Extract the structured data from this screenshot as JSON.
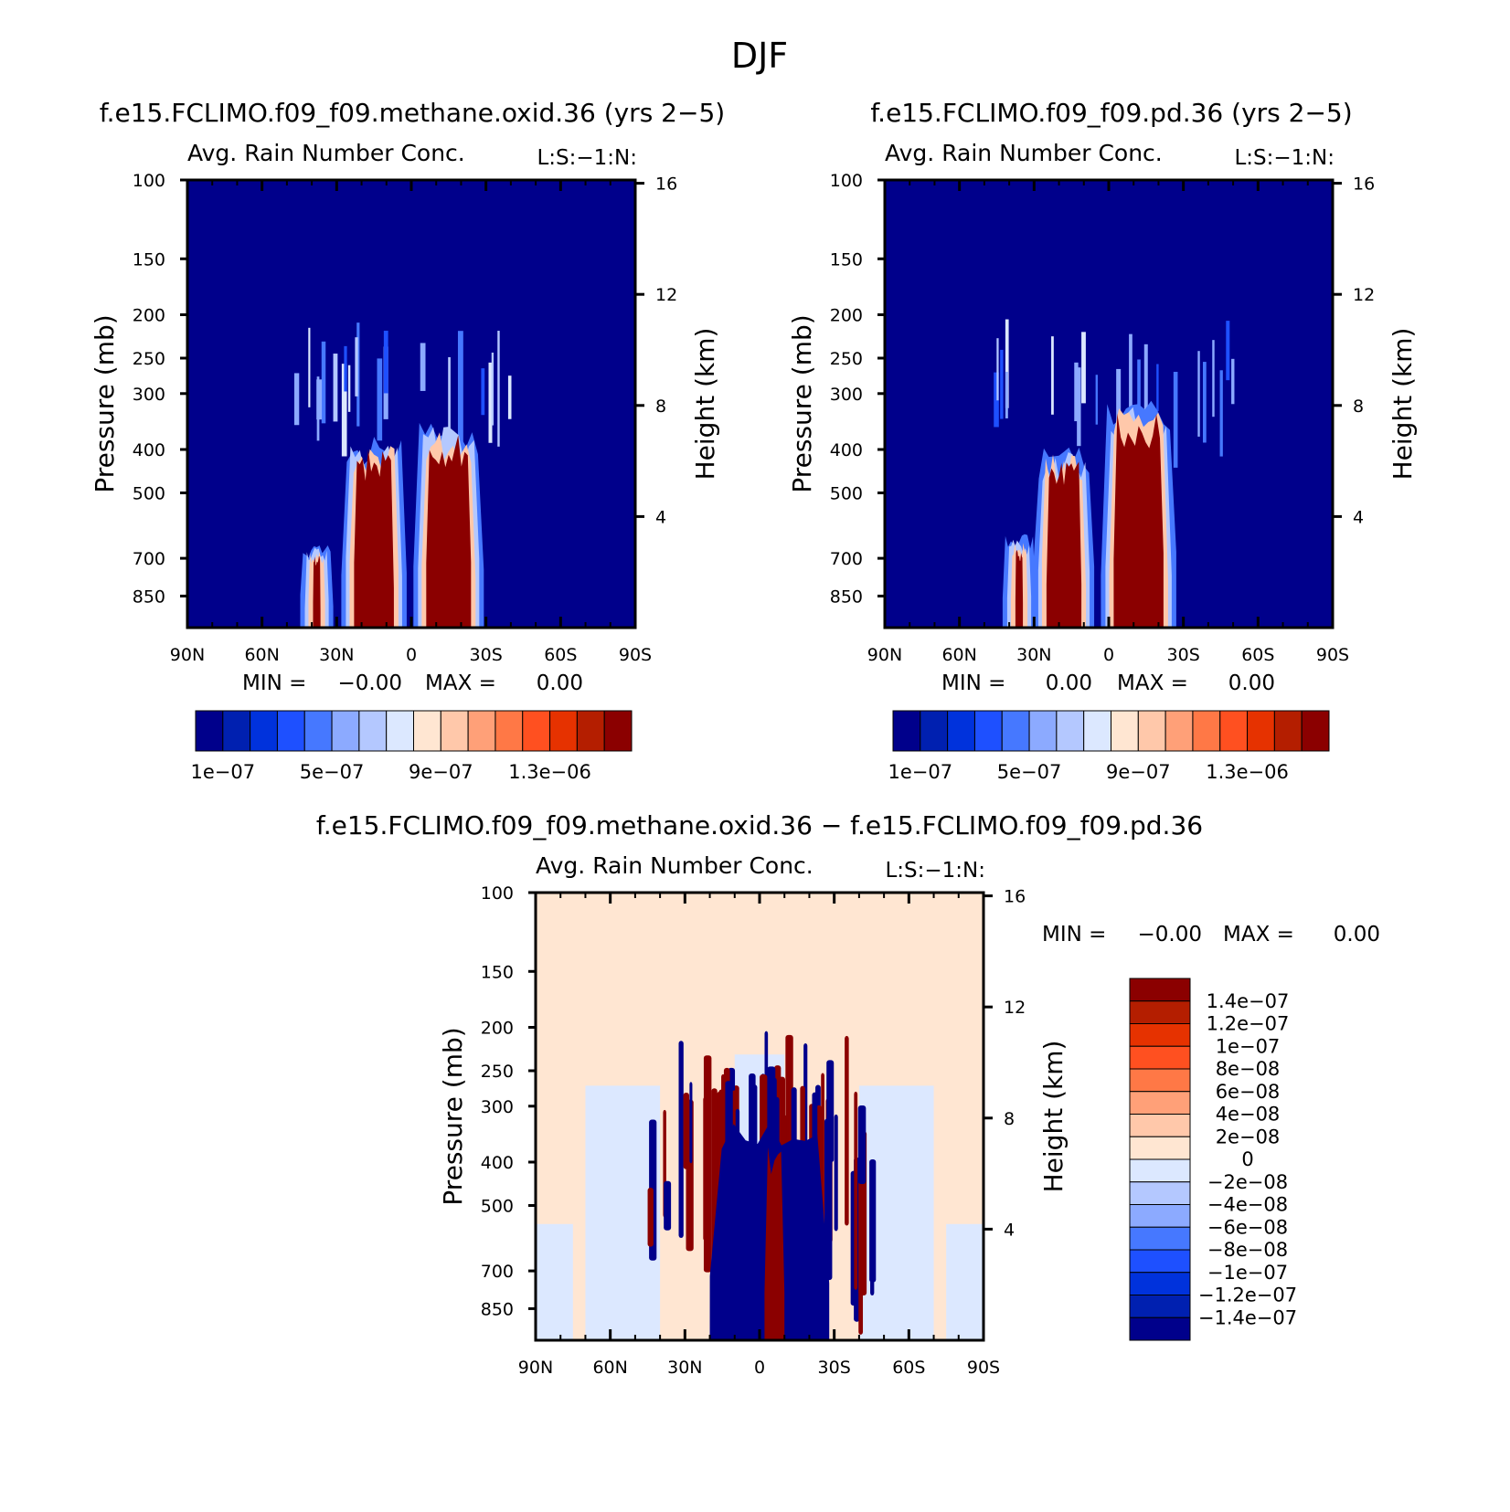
{
  "figure": {
    "season": "DJF"
  },
  "chart_data": [
    {
      "type": "heatmap",
      "title": "f.e15.FCLIMO.f09_f09.methane.oxid.36 (yrs 2−5)",
      "subtitle": "Avg. Rain Number Conc.",
      "tag": "L:S:−1:N:",
      "xlabel": "",
      "ylabel": "Pressure (mb)",
      "y2label": "Height (km)",
      "xticks": [
        "90N",
        "60N",
        "30N",
        "0",
        "30S",
        "60S",
        "90S"
      ],
      "yticks": [
        "100",
        "150",
        "200",
        "250",
        "300",
        "400",
        "500",
        "700",
        "850"
      ],
      "ylim": [
        100,
        1000
      ],
      "y2ticks": [
        "16",
        "12",
        "8",
        "4"
      ],
      "min_label": "MIN =",
      "min_value": "−0.00",
      "max_label": "MAX =",
      "max_value": "0.00",
      "colorbar": {
        "orientation": "horizontal",
        "colors": [
          "#00008b",
          "#0020b0",
          "#0032dc",
          "#1e50ff",
          "#4678ff",
          "#8caaff",
          "#b4c8ff",
          "#dce8ff",
          "#ffe6d2",
          "#ffc8aa",
          "#ffa078",
          "#ff7846",
          "#ff5020",
          "#e63200",
          "#b41e00",
          "#8b0000"
        ],
        "labels": [
          "1e−07",
          "5e−07",
          "9e−07",
          "1.3e−06"
        ]
      },
      "features": [
        {
          "lat": -15,
          "p_top": 370,
          "p_bottom": 1000,
          "width": 18,
          "value": "1.5e-06"
        },
        {
          "lat": 15,
          "p_top": 400,
          "p_bottom": 1000,
          "width": 16,
          "value": "1.5e-06"
        },
        {
          "lat": 38,
          "p_top": 690,
          "p_bottom": 1000,
          "width": 3,
          "value": "1.5e-06"
        }
      ]
    },
    {
      "type": "heatmap",
      "title": "f.e15.FCLIMO.f09_f09.pd.36 (yrs 2−5)",
      "subtitle": "Avg. Rain Number Conc.",
      "tag": "L:S:−1:N:",
      "xlabel": "",
      "ylabel": "Pressure (mb)",
      "y2label": "Height (km)",
      "xticks": [
        "90N",
        "60N",
        "30N",
        "0",
        "30S",
        "60S",
        "90S"
      ],
      "yticks": [
        "100",
        "150",
        "200",
        "250",
        "300",
        "400",
        "500",
        "700",
        "850"
      ],
      "ylim": [
        100,
        1000
      ],
      "y2ticks": [
        "16",
        "12",
        "8",
        "4"
      ],
      "min_label": "MIN =",
      "min_value": "0.00",
      "max_label": "MAX =",
      "max_value": "0.00",
      "colorbar": {
        "orientation": "horizontal",
        "colors": [
          "#00008b",
          "#0020b0",
          "#0032dc",
          "#1e50ff",
          "#4678ff",
          "#8caaff",
          "#b4c8ff",
          "#dce8ff",
          "#ffe6d2",
          "#ffc8aa",
          "#ffa078",
          "#ff7846",
          "#ff5020",
          "#e63200",
          "#b41e00",
          "#8b0000"
        ],
        "labels": [
          "1e−07",
          "5e−07",
          "9e−07",
          "1.3e−06"
        ]
      },
      "features": [
        {
          "lat": -12,
          "p_top": 330,
          "p_bottom": 1000,
          "width": 20,
          "value": "1.5e-06"
        },
        {
          "lat": 18,
          "p_top": 420,
          "p_bottom": 1000,
          "width": 14,
          "value": "1.5e-06"
        },
        {
          "lat": 36,
          "p_top": 660,
          "p_bottom": 1000,
          "width": 3,
          "value": "1.5e-06"
        }
      ]
    },
    {
      "type": "heatmap",
      "title": "f.e15.FCLIMO.f09_f09.methane.oxid.36 − f.e15.FCLIMO.f09_f09.pd.36",
      "subtitle": "Avg. Rain Number Conc.",
      "tag": "L:S:−1:N:",
      "xlabel": "",
      "ylabel": "Pressure (mb)",
      "y2label": "Height (km)",
      "xticks": [
        "90N",
        "60N",
        "30N",
        "0",
        "30S",
        "60S",
        "90S"
      ],
      "yticks": [
        "100",
        "150",
        "200",
        "250",
        "300",
        "400",
        "500",
        "700",
        "850"
      ],
      "ylim": [
        100,
        1000
      ],
      "y2ticks": [
        "16",
        "12",
        "8",
        "4"
      ],
      "min_label": "MIN =",
      "min_value": "−0.00",
      "max_label": "MAX =",
      "max_value": "0.00",
      "colorbar": {
        "orientation": "vertical",
        "colors": [
          "#8b0000",
          "#b41e00",
          "#e63200",
          "#ff5020",
          "#ff7846",
          "#ffa078",
          "#ffc8aa",
          "#ffe6d2",
          "#dce8ff",
          "#b4c8ff",
          "#8caaff",
          "#4678ff",
          "#1e50ff",
          "#0032dc",
          "#0020b0",
          "#00008b"
        ],
        "labels": [
          "1.4e−07",
          "1.2e−07",
          "1e−07",
          "8e−08",
          "6e−08",
          "4e−08",
          "2e−08",
          "0",
          "−2e−08",
          "−4e−08",
          "−6e−08",
          "−8e−08",
          "−1e−07",
          "−1.2e−07",
          "−1.4e−07"
        ]
      }
    }
  ]
}
